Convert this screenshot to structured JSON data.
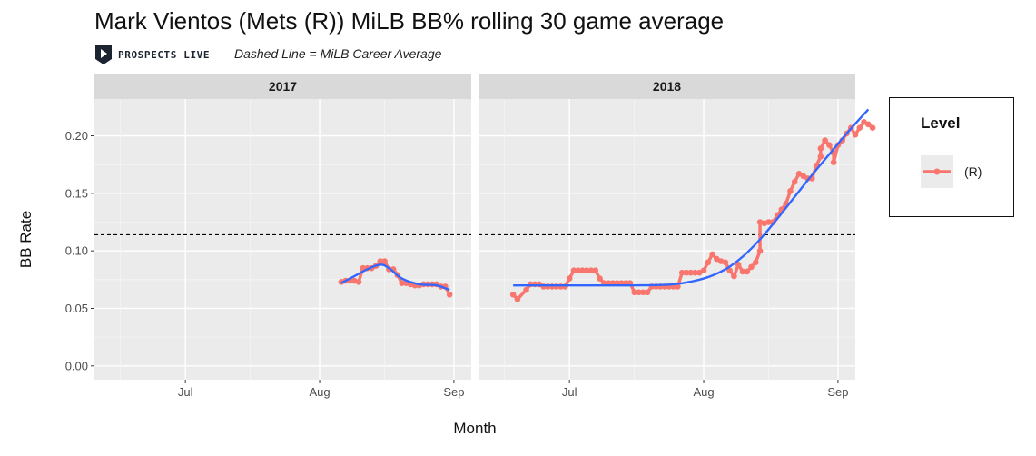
{
  "header": {
    "title": "Mark Vientos (Mets (R)) MiLB BB% rolling 30 game average",
    "subtitle": "Dashed Line = MiLB Career Average",
    "logo_text": "PROSPECTS LIVE",
    "logo_icon": "play-shield-icon"
  },
  "legend": {
    "title": "Level",
    "items": [
      {
        "label": "(R)",
        "color": "#f8766d"
      }
    ]
  },
  "chart_data": {
    "type": "line",
    "ylabel": "BB Rate",
    "xlabel": "Month",
    "ylim": [
      -0.012,
      0.232
    ],
    "yticks": [
      0.0,
      0.05,
      0.1,
      0.15,
      0.2
    ],
    "ytick_labels": [
      "0.00",
      "0.05",
      "0.10",
      "0.15",
      "0.20"
    ],
    "career_average": 0.114,
    "colors": {
      "series": "#f8766d",
      "smooth": "#3366ff",
      "panel": "#ebebeb",
      "strip": "#d9d9d9"
    },
    "facets": [
      {
        "label": "2017",
        "xlim": [
          "06-10",
          "09-05"
        ],
        "xticks": [
          {
            "date": "07-01",
            "label": "Jul"
          },
          {
            "date": "08-01",
            "label": "Aug"
          },
          {
            "date": "09-01",
            "label": "Sep"
          }
        ],
        "series": {
          "name": "(R)",
          "points": [
            [
              "08-06",
              0.073
            ],
            [
              "08-07",
              0.074
            ],
            [
              "08-08",
              0.074
            ],
            [
              "08-09",
              0.074
            ],
            [
              "08-10",
              0.073
            ],
            [
              "08-11",
              0.085
            ],
            [
              "08-12",
              0.085
            ],
            [
              "08-13",
              0.085
            ],
            [
              "08-14",
              0.087
            ],
            [
              "08-15",
              0.091
            ],
            [
              "08-16",
              0.091
            ],
            [
              "08-17",
              0.084
            ],
            [
              "08-18",
              0.084
            ],
            [
              "08-19",
              0.079
            ],
            [
              "08-20",
              0.072
            ],
            [
              "08-21",
              0.072
            ],
            [
              "08-22",
              0.071
            ],
            [
              "08-23",
              0.07
            ],
            [
              "08-24",
              0.07
            ],
            [
              "08-25",
              0.071
            ],
            [
              "08-26",
              0.071
            ],
            [
              "08-27",
              0.071
            ],
            [
              "08-28",
              0.071
            ],
            [
              "08-29",
              0.069
            ],
            [
              "08-30",
              0.069
            ],
            [
              "08-31",
              0.062
            ]
          ]
        },
        "smooth": [
          [
            "08-06",
            0.072
          ],
          [
            "08-09",
            0.078
          ],
          [
            "08-12",
            0.084
          ],
          [
            "08-15",
            0.088
          ],
          [
            "08-17",
            0.085
          ],
          [
            "08-20",
            0.076
          ],
          [
            "08-24",
            0.071
          ],
          [
            "08-28",
            0.07
          ],
          [
            "08-31",
            0.066
          ]
        ]
      },
      {
        "label": "2018",
        "xlim": [
          "06-10",
          "09-05"
        ],
        "xticks": [
          {
            "date": "07-01",
            "label": "Jul"
          },
          {
            "date": "08-01",
            "label": "Aug"
          },
          {
            "date": "09-01",
            "label": "Sep"
          }
        ],
        "series": {
          "name": "(R)",
          "points": [
            [
              "06-18",
              0.062
            ],
            [
              "06-19",
              0.058
            ],
            [
              "06-21",
              0.066
            ],
            [
              "06-22",
              0.071
            ],
            [
              "06-23",
              0.071
            ],
            [
              "06-24",
              0.071
            ],
            [
              "06-25",
              0.069
            ],
            [
              "06-26",
              0.069
            ],
            [
              "06-27",
              0.069
            ],
            [
              "06-28",
              0.069
            ],
            [
              "06-29",
              0.069
            ],
            [
              "06-30",
              0.069
            ],
            [
              "07-01",
              0.076
            ],
            [
              "07-02",
              0.083
            ],
            [
              "07-03",
              0.083
            ],
            [
              "07-04",
              0.083
            ],
            [
              "07-05",
              0.083
            ],
            [
              "07-06",
              0.083
            ],
            [
              "07-07",
              0.083
            ],
            [
              "07-08",
              0.076
            ],
            [
              "07-09",
              0.072
            ],
            [
              "07-10",
              0.072
            ],
            [
              "07-11",
              0.072
            ],
            [
              "07-12",
              0.072
            ],
            [
              "07-13",
              0.072
            ],
            [
              "07-14",
              0.072
            ],
            [
              "07-15",
              0.072
            ],
            [
              "07-16",
              0.064
            ],
            [
              "07-17",
              0.064
            ],
            [
              "07-18",
              0.064
            ],
            [
              "07-19",
              0.064
            ],
            [
              "07-20",
              0.069
            ],
            [
              "07-21",
              0.069
            ],
            [
              "07-22",
              0.069
            ],
            [
              "07-23",
              0.069
            ],
            [
              "07-24",
              0.069
            ],
            [
              "07-25",
              0.069
            ],
            [
              "07-26",
              0.069
            ],
            [
              "07-27",
              0.081
            ],
            [
              "07-28",
              0.081
            ],
            [
              "07-29",
              0.081
            ],
            [
              "07-30",
              0.081
            ],
            [
              "07-31",
              0.081
            ],
            [
              "08-01",
              0.083
            ],
            [
              "08-02",
              0.09
            ],
            [
              "08-03",
              0.097
            ],
            [
              "08-04",
              0.093
            ],
            [
              "08-05",
              0.091
            ],
            [
              "08-06",
              0.09
            ],
            [
              "08-07",
              0.083
            ],
            [
              "08-08",
              0.078
            ],
            [
              "08-09",
              0.088
            ],
            [
              "08-10",
              0.082
            ],
            [
              "08-11",
              0.082
            ],
            [
              "08-12",
              0.086
            ],
            [
              "08-13",
              0.09
            ],
            [
              "08-14",
              0.1
            ],
            [
              "08-14",
              0.125
            ],
            [
              "08-15",
              0.124
            ],
            [
              "08-16",
              0.125
            ],
            [
              "08-17",
              0.125
            ],
            [
              "08-18",
              0.131
            ],
            [
              "08-19",
              0.136
            ],
            [
              "08-20",
              0.141
            ],
            [
              "08-21",
              0.152
            ],
            [
              "08-22",
              0.16
            ],
            [
              "08-23",
              0.167
            ],
            [
              "08-24",
              0.165
            ],
            [
              "08-25",
              0.163
            ],
            [
              "08-26",
              0.163
            ],
            [
              "08-27",
              0.174
            ],
            [
              "08-28",
              0.182
            ],
            [
              "08-28",
              0.189
            ],
            [
              "08-29",
              0.196
            ],
            [
              "08-30",
              0.192
            ],
            [
              "08-31",
              0.185
            ],
            [
              "08-31",
              0.177
            ],
            [
              "09-01",
              0.192
            ],
            [
              "09-02",
              0.196
            ],
            [
              "09-03",
              0.202
            ],
            [
              "09-04",
              0.207
            ],
            [
              "09-05",
              0.201
            ],
            [
              "09-06",
              0.207
            ],
            [
              "09-07",
              0.212
            ],
            [
              "09-08",
              0.21
            ],
            [
              "09-09",
              0.207
            ]
          ]
        },
        "smooth": [
          [
            "06-18",
            0.07
          ],
          [
            "07-01",
            0.07
          ],
          [
            "07-15",
            0.07
          ],
          [
            "07-25",
            0.071
          ],
          [
            "08-01",
            0.076
          ],
          [
            "08-06",
            0.084
          ],
          [
            "08-10",
            0.095
          ],
          [
            "08-14",
            0.11
          ],
          [
            "08-18",
            0.128
          ],
          [
            "08-22",
            0.147
          ],
          [
            "08-26",
            0.166
          ],
          [
            "08-30",
            0.184
          ],
          [
            "09-03",
            0.202
          ],
          [
            "09-08",
            0.223
          ]
        ]
      }
    ]
  }
}
